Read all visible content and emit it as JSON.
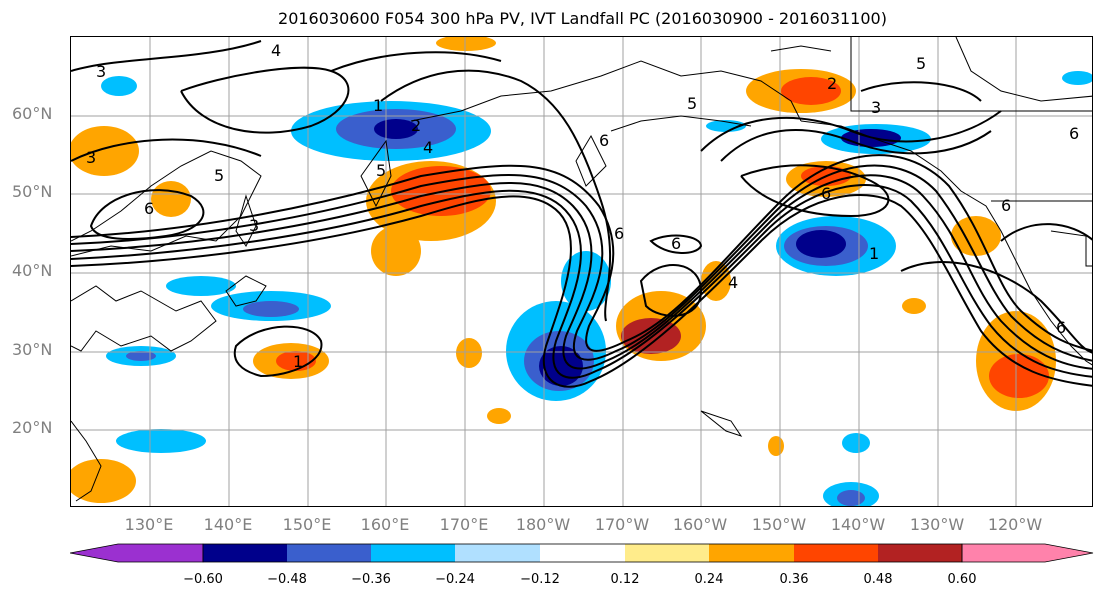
{
  "title": "2016030600 F054 300 hPa PV, IVT Landfall PC (2016030900 - 2016031100)",
  "lat_labels": [
    "60°N",
    "50°N",
    "40°N",
    "30°N",
    "20°N"
  ],
  "lon_labels": [
    "130°E",
    "140°E",
    "150°E",
    "160°E",
    "170°E",
    "180°W",
    "170°W",
    "160°W",
    "150°W",
    "140°W",
    "130°W",
    "120°W"
  ],
  "contour_labels": [
    "3",
    "4",
    "3",
    "5",
    "6",
    "3",
    "1",
    "2",
    "4",
    "5",
    "6",
    "1",
    "5",
    "6",
    "6",
    "4",
    "1",
    "6",
    "2",
    "3",
    "5",
    "6",
    "6",
    "6"
  ],
  "colorbar": {
    "ticks": [
      "−0.60",
      "−0.48",
      "−0.36",
      "−0.24",
      "−0.12",
      "0.12",
      "0.24",
      "0.36",
      "0.48",
      "0.60"
    ],
    "colors": [
      "#9b30d0",
      "#00008b",
      "#3a5fcd",
      "#00bfff",
      "#b0e0ff",
      "#ffffff",
      "#ffec8b",
      "#ffa500",
      "#ff4500",
      "#b22222",
      "#ff82ab"
    ]
  }
}
